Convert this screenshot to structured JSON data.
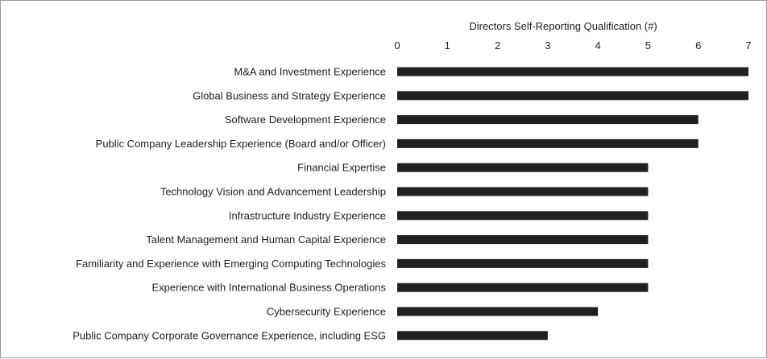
{
  "chart_data": {
    "type": "bar",
    "orientation": "horizontal",
    "title": "Directors Self-Reporting Qualification (#)",
    "xlabel": "Directors Self-Reporting Qualification (#)",
    "ylabel": "",
    "xlim": [
      0,
      7
    ],
    "ticks": [
      0,
      1,
      2,
      3,
      4,
      5,
      6,
      7
    ],
    "grid": false,
    "bar_color": "#231f20",
    "categories": [
      "M&A and Investment Experience",
      "Global Business and Strategy Experience",
      "Software Development Experience",
      "Public Company Leadership Experience (Board and/or Officer)",
      "Financial Expertise",
      "Technology Vision and Advancement Leadership",
      "Infrastructure Industry Experience",
      "Talent Management and Human Capital Experience",
      "Familiarity and Experience with Emerging Computing Technologies",
      "Experience with International Business Operations",
      "Cybersecurity Experience",
      "Public Company Corporate Governance Experience, including ESG"
    ],
    "values": [
      7,
      7,
      6,
      6,
      5,
      5,
      5,
      5,
      5,
      5,
      4,
      3
    ]
  }
}
